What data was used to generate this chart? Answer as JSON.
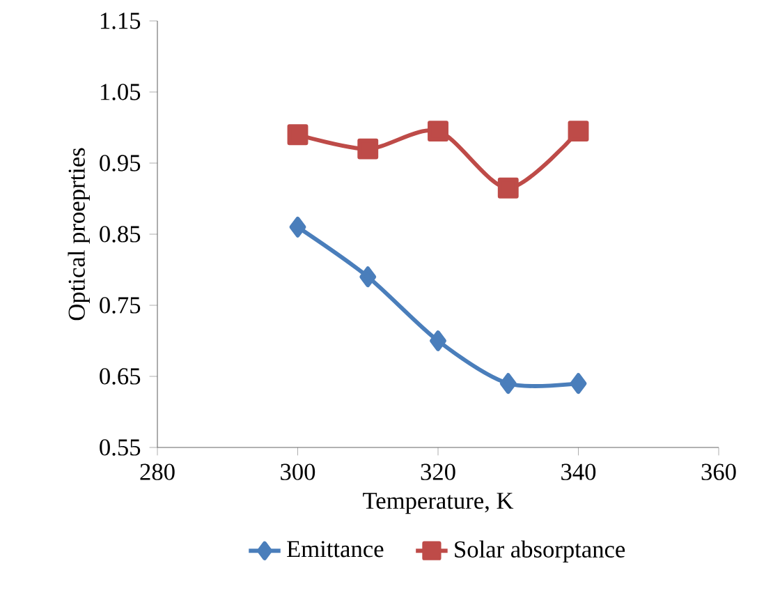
{
  "chart_data": {
    "type": "line",
    "xlabel": "Temperature, K",
    "ylabel": "Optical proeprties",
    "x": [
      300,
      310,
      320,
      330,
      340
    ],
    "series": [
      {
        "name": "Emittance",
        "color": "#4a7ebb",
        "marker": "diamond",
        "values": [
          0.86,
          0.79,
          0.7,
          0.64,
          0.64
        ]
      },
      {
        "name": "Solar absorptance",
        "color": "#be4b48",
        "marker": "square",
        "values": [
          0.99,
          0.97,
          0.995,
          0.915,
          0.995
        ]
      }
    ],
    "xlim": [
      280,
      360
    ],
    "xticks": [
      280,
      300,
      320,
      340,
      360
    ],
    "ylim": [
      0.55,
      1.15
    ],
    "yticks": [
      0.55,
      0.65,
      0.75,
      0.85,
      0.95,
      1.05,
      1.15
    ],
    "legend": "bottom",
    "grid": false,
    "line_style": "solid"
  }
}
